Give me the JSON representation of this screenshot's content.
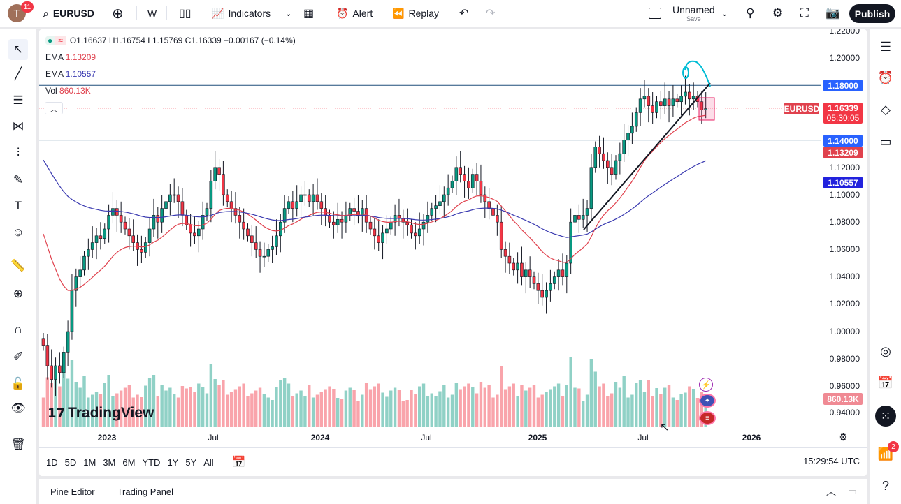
{
  "topbar": {
    "avatar_letter": "T",
    "notifications": "11",
    "symbol": "EURUSD",
    "interval": "W",
    "indicators": "Indicators",
    "alert": "Alert",
    "replay": "Replay",
    "layout_name": "Unnamed",
    "layout_status": "Save",
    "publish": "Publish"
  },
  "legend": {
    "ohlc": "O1.16637 H1.16754 L1.15769 C1.16339 −0.00167 (−0.14%)",
    "ema1_label": "EMA",
    "ema1_value": "1.13209",
    "ema2_label": "EMA",
    "ema2_value": "1.10557",
    "vol_label": "Vol",
    "vol_value": "860.13K"
  },
  "price_axis": {
    "ticks": [
      "1.22000",
      "1.20000",
      "1.12000",
      "1.10000",
      "1.08000",
      "1.06000",
      "1.04000",
      "1.02000",
      "1.00000",
      "0.98000",
      "0.96000",
      "0.94000"
    ],
    "labels": {
      "line_upper": "1.18000",
      "symbol": "EURUSD",
      "price": "1.16339",
      "countdown": "05:30:05",
      "line_lower": "1.14000",
      "ema1": "1.13209",
      "ema2": "1.10557",
      "volume": "860.13K"
    }
  },
  "time_axis": {
    "ticks": [
      "2023",
      "Jul",
      "2024",
      "Jul",
      "2025",
      "Jul",
      "2026"
    ]
  },
  "ranges": [
    "1D",
    "5D",
    "1M",
    "3M",
    "6M",
    "YTD",
    "1Y",
    "5Y",
    "All"
  ],
  "clock": "15:29:54 UTC",
  "bottom_tabs": [
    "Pine Editor",
    "Trading Panel"
  ],
  "watermark": "TradingView",
  "right_badge": "2",
  "colors": {
    "up": "#089981",
    "down": "#f23645",
    "ema1": "#e0414d",
    "ema2": "#3a3ab0",
    "hline": "#2962ff",
    "accent": "#2962ff"
  },
  "chart_data": {
    "type": "candlestick",
    "symbol": "EURUSD",
    "interval": "W",
    "horizontal_lines": [
      1.18,
      1.14
    ],
    "last_close": 1.16339,
    "closes": [
      0.99,
      0.975,
      0.965,
      0.975,
      0.97,
      0.985,
      1.0,
      1.03,
      1.04,
      1.045,
      1.055,
      1.06,
      1.065,
      1.07,
      1.068,
      1.075,
      1.085,
      1.09,
      1.085,
      1.08,
      1.075,
      1.07,
      1.065,
      1.06,
      1.058,
      1.065,
      1.075,
      1.085,
      1.08,
      1.09,
      1.095,
      1.1,
      1.1,
      1.095,
      1.085,
      1.078,
      1.072,
      1.07,
      1.075,
      1.085,
      1.09,
      1.11,
      1.12,
      1.115,
      1.1,
      1.095,
      1.09,
      1.085,
      1.08,
      1.075,
      1.07,
      1.065,
      1.06,
      1.055,
      1.055,
      1.06,
      1.062,
      1.07,
      1.08,
      1.09,
      1.095,
      1.09,
      1.095,
      1.1,
      1.1,
      1.095,
      1.1,
      1.095,
      1.09,
      1.085,
      1.08,
      1.078,
      1.082,
      1.08,
      1.085,
      1.09,
      1.088,
      1.085,
      1.09,
      1.08,
      1.075,
      1.07,
      1.065,
      1.072,
      1.075,
      1.08,
      1.085,
      1.083,
      1.08,
      1.078,
      1.072,
      1.07,
      1.075,
      1.08,
      1.085,
      1.09,
      1.092,
      1.095,
      1.1,
      1.105,
      1.11,
      1.12,
      1.115,
      1.11,
      1.105,
      1.115,
      1.11,
      1.1,
      1.095,
      1.09,
      1.085,
      1.08,
      1.06,
      1.055,
      1.05,
      1.045,
      1.05,
      1.04,
      1.045,
      1.04,
      1.035,
      1.03,
      1.025,
      1.03,
      1.035,
      1.04,
      1.045,
      1.04,
      1.05,
      1.08,
      1.085,
      1.082,
      1.085,
      1.09,
      1.12,
      1.135,
      1.13,
      1.125,
      1.12,
      1.115,
      1.125,
      1.13,
      1.14,
      1.145,
      1.15,
      1.16,
      1.17,
      1.172,
      1.165,
      1.16,
      1.168,
      1.165,
      1.17,
      1.165,
      1.17,
      1.168,
      1.172,
      1.175,
      1.17,
      1.172,
      1.168,
      1.162,
      1.163
    ]
  }
}
